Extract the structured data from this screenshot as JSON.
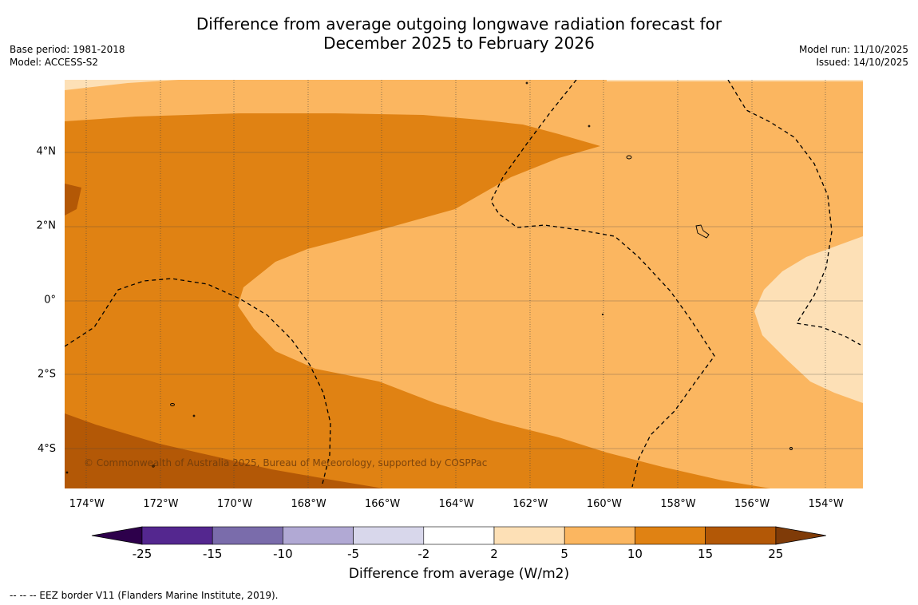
{
  "title": {
    "line1": "Difference from average outgoing longwave radiation forecast for",
    "line2": "December 2025 to February 2026"
  },
  "meta_left": {
    "base_period": "Base period: 1981-2018",
    "model": "Model: ACCESS-S2"
  },
  "meta_right": {
    "model_run": "Model run: 11/10/2025",
    "issued": "Issued: 14/10/2025"
  },
  "map": {
    "lon_range": [
      -174.6,
      -153.0
    ],
    "lat_range": [
      -5.1,
      5.9
    ],
    "lon_ticks": [
      {
        "value": -174,
        "label": "174°W"
      },
      {
        "value": -172,
        "label": "172°W"
      },
      {
        "value": -170,
        "label": "170°W"
      },
      {
        "value": -168,
        "label": "168°W"
      },
      {
        "value": -166,
        "label": "166°W"
      },
      {
        "value": -164,
        "label": "164°W"
      },
      {
        "value": -162,
        "label": "162°W"
      },
      {
        "value": -160,
        "label": "160°W"
      },
      {
        "value": -158,
        "label": "158°W"
      },
      {
        "value": -156,
        "label": "156°W"
      },
      {
        "value": -154,
        "label": "154°W"
      }
    ],
    "lat_ticks": [
      {
        "value": 4,
        "label": "4°N"
      },
      {
        "value": 2,
        "label": "2°N"
      },
      {
        "value": 0,
        "label": "0°"
      },
      {
        "value": -2,
        "label": "2°S"
      },
      {
        "value": -4,
        "label": "4°S"
      }
    ],
    "copyright": "© Commonwealth of Australia 2025, Bureau of Meteorology, supported by COSPPac"
  },
  "colorbar": {
    "title": "Difference from average (W/m2)",
    "labels": [
      "-25",
      "-15",
      "-10",
      "-5",
      "-2",
      "2",
      "5",
      "10",
      "15",
      "25"
    ],
    "colors": [
      "#54278f",
      "#7a6cab",
      "#b1a9d4",
      "#d8d7eb",
      "#ffffff",
      "#fde0b6",
      "#fbb660",
      "#e08213",
      "#b35806"
    ],
    "low_extend_color": "#2d004b",
    "high_extend_color": "#7f3b08"
  },
  "footnote": "--  --  -- EEZ border V11 (Flanders Marine Institute, 2019)."
}
